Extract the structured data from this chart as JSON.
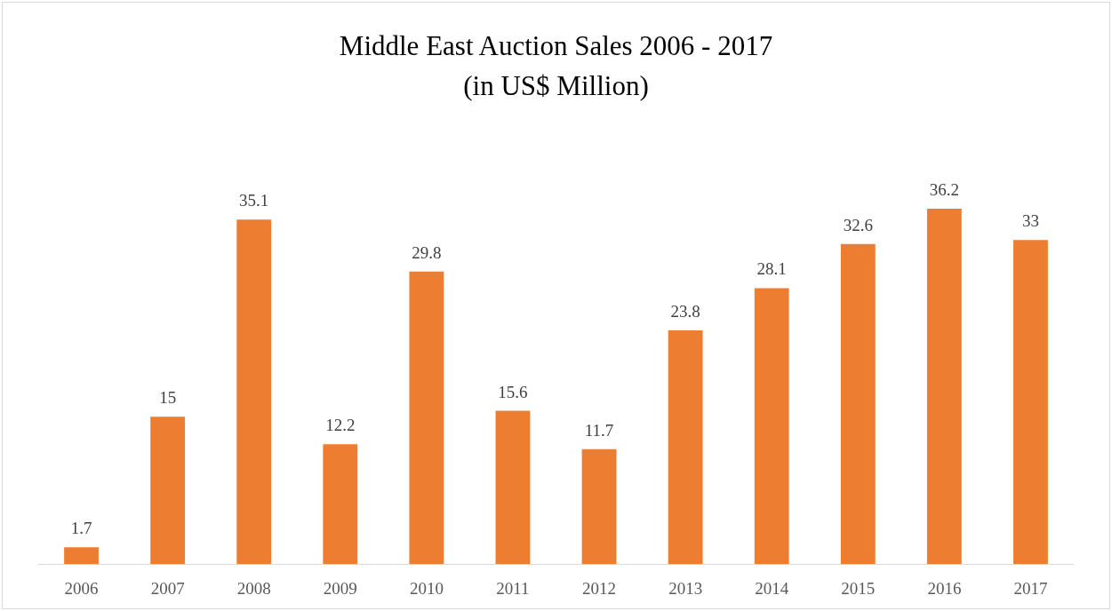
{
  "chart_data": {
    "type": "bar",
    "title": "Middle East Auction Sales 2006 - 2017",
    "subtitle": "(in US$ Million)",
    "categories": [
      "2006",
      "2007",
      "2008",
      "2009",
      "2010",
      "2011",
      "2012",
      "2013",
      "2014",
      "2015",
      "2016",
      "2017"
    ],
    "values": [
      1.7,
      15,
      35.1,
      12.2,
      29.8,
      15.6,
      11.7,
      23.8,
      28.1,
      32.6,
      36.2,
      33
    ],
    "color": "#ed7d31",
    "data_labels": true,
    "grid": false,
    "tick_labels": "x"
  }
}
